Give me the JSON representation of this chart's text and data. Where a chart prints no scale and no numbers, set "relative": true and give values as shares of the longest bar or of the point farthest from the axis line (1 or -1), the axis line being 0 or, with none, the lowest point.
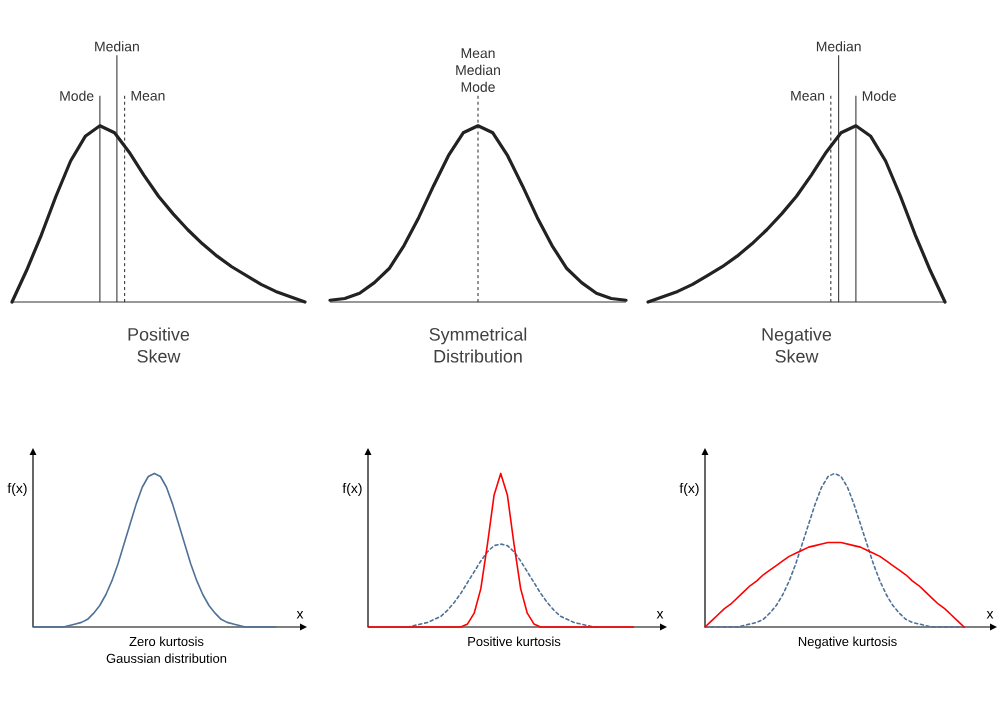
{
  "chart_data": [
    {
      "type": "line",
      "relative": true,
      "title": "Positive Skew",
      "categories": [
        null,
        null,
        null,
        null,
        null,
        null,
        null,
        null,
        null,
        null,
        null,
        null,
        null,
        null,
        null,
        null,
        null,
        null,
        null,
        null,
        null
      ],
      "series": [
        {
          "color": "#222222",
          "values": [
            0,
            0.18,
            0.38,
            0.6,
            0.8,
            0.94,
            1,
            0.96,
            0.85,
            0.72,
            0.6,
            0.5,
            0.41,
            0.33,
            0.26,
            0.2,
            0.15,
            0.1,
            0.06,
            0.03,
            0
          ]
        }
      ],
      "annotations": [
        "Mode",
        "Median",
        "Mean"
      ]
    },
    {
      "type": "line",
      "relative": true,
      "title": "Symmetrical Distribution",
      "categories": [
        null,
        null,
        null,
        null,
        null,
        null,
        null,
        null,
        null,
        null,
        null,
        null,
        null,
        null,
        null,
        null,
        null,
        null,
        null,
        null,
        null
      ],
      "series": [
        {
          "color": "#222222",
          "values": [
            0.01,
            0.02,
            0.05,
            0.11,
            0.19,
            0.32,
            0.48,
            0.66,
            0.83,
            0.96,
            1,
            0.96,
            0.83,
            0.66,
            0.48,
            0.32,
            0.19,
            0.11,
            0.05,
            0.02,
            0.01
          ]
        }
      ],
      "annotations": [
        "Mean Median Mode"
      ]
    },
    {
      "type": "line",
      "relative": true,
      "title": "Negative Skew",
      "categories": [
        null,
        null,
        null,
        null,
        null,
        null,
        null,
        null,
        null,
        null,
        null,
        null,
        null,
        null,
        null,
        null,
        null,
        null,
        null,
        null,
        null
      ],
      "series": [
        {
          "color": "#222222",
          "values": [
            0,
            0.03,
            0.06,
            0.1,
            0.15,
            0.2,
            0.26,
            0.33,
            0.41,
            0.5,
            0.6,
            0.72,
            0.85,
            0.96,
            1,
            0.94,
            0.8,
            0.6,
            0.38,
            0.18,
            0
          ]
        }
      ],
      "annotations": [
        "Mode",
        "Median",
        "Mean"
      ]
    },
    {
      "type": "line",
      "relative": true,
      "title": "Zero kurtosis",
      "subtitle": "Gaussian distribution",
      "xlabel": "x",
      "ylabel": "f(x)",
      "categories": [
        null,
        null,
        null,
        null,
        null,
        null,
        null,
        null,
        null,
        null,
        null,
        null,
        null,
        null,
        null,
        null,
        null,
        null,
        null,
        null,
        null,
        null,
        null,
        null,
        null,
        null,
        null,
        null,
        null,
        null,
        null,
        null,
        null,
        null,
        null,
        null,
        null,
        null,
        null,
        null,
        null
      ],
      "series": [
        {
          "color": "#4f7198",
          "line_style": "solid",
          "values": [
            0,
            0,
            0,
            0,
            0,
            0,
            0.01,
            0.02,
            0.03,
            0.05,
            0.09,
            0.14,
            0.21,
            0.3,
            0.41,
            0.54,
            0.67,
            0.8,
            0.91,
            0.98,
            1,
            0.98,
            0.91,
            0.8,
            0.67,
            0.54,
            0.41,
            0.3,
            0.21,
            0.14,
            0.09,
            0.05,
            0.03,
            0.02,
            0.01,
            0,
            0,
            0,
            0,
            0,
            0
          ]
        }
      ]
    },
    {
      "type": "line",
      "relative": true,
      "title": "Positive kurtosis",
      "xlabel": "x",
      "ylabel": "f(x)",
      "categories": [
        null,
        null,
        null,
        null,
        null,
        null,
        null,
        null,
        null,
        null,
        null,
        null,
        null,
        null,
        null,
        null,
        null,
        null,
        null,
        null,
        null,
        null,
        null,
        null,
        null,
        null,
        null,
        null,
        null,
        null,
        null,
        null,
        null,
        null,
        null,
        null,
        null,
        null,
        null,
        null,
        null
      ],
      "series": [
        {
          "color": "#4f7198",
          "line_style": "dashed",
          "values": [
            null,
            null,
            null,
            null,
            null,
            0,
            0,
            0.01,
            0.02,
            0.03,
            0.05,
            0.07,
            0.11,
            0.16,
            0.22,
            0.29,
            0.36,
            0.43,
            0.49,
            0.53,
            0.54,
            0.53,
            0.49,
            0.43,
            0.36,
            0.29,
            0.22,
            0.16,
            0.11,
            0.07,
            0.05,
            0.03,
            0.02,
            0.01,
            0,
            0,
            null,
            null,
            null,
            null,
            null
          ]
        },
        {
          "color": "#ff0000",
          "line_style": "solid",
          "values": [
            0,
            0,
            0,
            0,
            0,
            0,
            0,
            0,
            0,
            0,
            0,
            0,
            0,
            0,
            0,
            0.02,
            0.09,
            0.25,
            0.54,
            0.86,
            1,
            0.86,
            0.54,
            0.25,
            0.09,
            0.02,
            0,
            0,
            0,
            0,
            0,
            0,
            0,
            0,
            0,
            0,
            0,
            0,
            0,
            0,
            0
          ]
        }
      ]
    },
    {
      "type": "line",
      "relative": true,
      "title": "Negative kurtosis",
      "xlabel": "x",
      "ylabel": "f(x)",
      "categories": [
        null,
        null,
        null,
        null,
        null,
        null,
        null,
        null,
        null,
        null,
        null,
        null,
        null,
        null,
        null,
        null,
        null,
        null,
        null,
        null,
        null,
        null,
        null,
        null,
        null,
        null,
        null,
        null,
        null,
        null,
        null,
        null,
        null,
        null,
        null,
        null,
        null,
        null,
        null,
        null,
        null
      ],
      "series": [
        {
          "color": "#4f7198",
          "line_style": "dashed",
          "values": [
            0,
            0,
            0,
            0,
            0,
            0,
            0.01,
            0.02,
            0.03,
            0.05,
            0.09,
            0.14,
            0.21,
            0.3,
            0.41,
            0.54,
            0.67,
            0.8,
            0.91,
            0.98,
            1,
            0.98,
            0.91,
            0.8,
            0.67,
            0.54,
            0.41,
            0.3,
            0.21,
            0.14,
            0.09,
            0.05,
            0.03,
            0.02,
            0.01,
            0,
            0,
            0,
            0,
            0,
            0
          ]
        },
        {
          "color": "#ff0000",
          "line_style": "solid",
          "values": [
            0,
            0.04,
            0.08,
            0.12,
            0.15,
            0.19,
            0.23,
            0.27,
            0.3,
            0.34,
            0.37,
            0.4,
            0.43,
            0.46,
            0.48,
            0.5,
            0.52,
            0.53,
            0.54,
            0.55,
            0.55,
            0.55,
            0.54,
            0.53,
            0.52,
            0.5,
            0.48,
            0.46,
            0.43,
            0.4,
            0.37,
            0.34,
            0.3,
            0.27,
            0.23,
            0.19,
            0.15,
            0.12,
            0.08,
            0.04,
            0
          ]
        }
      ]
    }
  ]
}
